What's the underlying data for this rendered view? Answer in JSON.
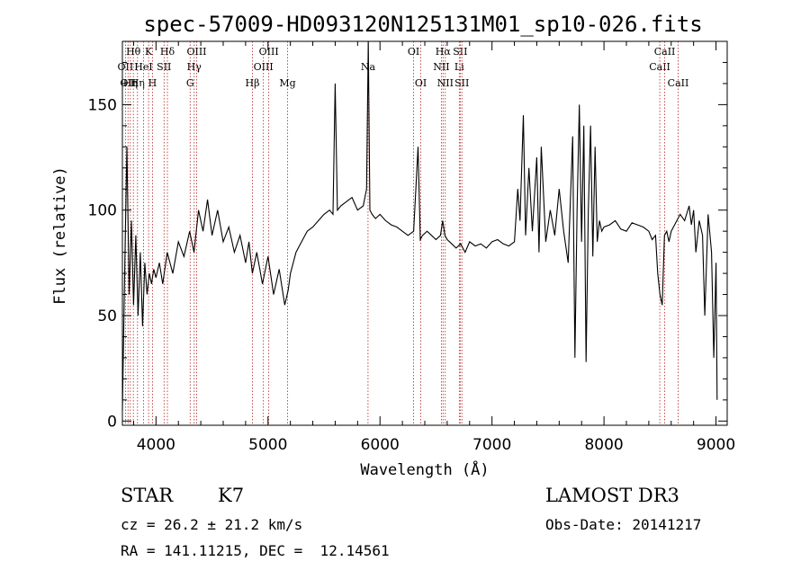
{
  "chart_data": {
    "type": "line",
    "title": "spec-57009-HD093120N125131M01_sp10-026.fits",
    "xlabel": "Wavelength (Å)",
    "ylabel": "Flux (relative)",
    "xlim": [
      3700,
      9100
    ],
    "ylim": [
      -2,
      180
    ],
    "xticks": [
      4000,
      5000,
      6000,
      7000,
      8000,
      9000
    ],
    "yticks": [
      0,
      50,
      100,
      150
    ],
    "grid": false,
    "line_color": "#000000",
    "marker_color": "#b22222",
    "series": [
      {
        "x": [
          3700,
          3720,
          3740,
          3760,
          3780,
          3800,
          3820,
          3840,
          3860,
          3880,
          3900,
          3920,
          3940,
          3960,
          3980,
          4000,
          4030,
          4060,
          4100,
          4150,
          4200,
          4250,
          4300,
          4340,
          4380,
          4420,
          4460,
          4500,
          4550,
          4600,
          4650,
          4700,
          4750,
          4800,
          4830,
          4860,
          4900,
          4950,
          5000,
          5050,
          5100,
          5150,
          5180,
          5200,
          5250,
          5300,
          5350,
          5400,
          5450,
          5500,
          5550,
          5580,
          5600,
          5620,
          5650,
          5700,
          5750,
          5800,
          5850,
          5880,
          5895,
          5910,
          5930,
          5960,
          6000,
          6050,
          6100,
          6150,
          6200,
          6250,
          6300,
          6340,
          6360,
          6380,
          6420,
          6460,
          6500,
          6540,
          6560,
          6580,
          6600,
          6640,
          6680,
          6720,
          6760,
          6800,
          6850,
          6900,
          6950,
          7000,
          7050,
          7100,
          7150,
          7200,
          7230,
          7250,
          7280,
          7300,
          7330,
          7360,
          7400,
          7420,
          7440,
          7480,
          7520,
          7560,
          7600,
          7640,
          7680,
          7720,
          7740,
          7760,
          7780,
          7800,
          7820,
          7840,
          7860,
          7880,
          7900,
          7920,
          7940,
          7960,
          7980,
          8000,
          8050,
          8100,
          8150,
          8200,
          8250,
          8300,
          8350,
          8400,
          8430,
          8460,
          8480,
          8500,
          8520,
          8540,
          8560,
          8580,
          8600,
          8640,
          8680,
          8720,
          8760,
          8780,
          8800,
          8820,
          8850,
          8880,
          8900,
          8930,
          8960,
          8980,
          9000,
          9010
        ],
        "y": [
          5,
          70,
          130,
          60,
          95,
          55,
          88,
          50,
          80,
          45,
          75,
          60,
          70,
          65,
          72,
          68,
          75,
          65,
          80,
          70,
          85,
          78,
          90,
          80,
          100,
          90,
          105,
          88,
          100,
          85,
          92,
          80,
          88,
          75,
          85,
          70,
          80,
          65,
          78,
          60,
          72,
          55,
          62,
          70,
          80,
          85,
          90,
          92,
          95,
          98,
          100,
          98,
          160,
          100,
          102,
          104,
          106,
          100,
          102,
          110,
          180,
          100,
          98,
          96,
          98,
          95,
          93,
          92,
          90,
          88,
          90,
          130,
          86,
          88,
          90,
          88,
          86,
          88,
          95,
          88,
          86,
          84,
          82,
          84,
          80,
          85,
          83,
          84,
          82,
          85,
          86,
          84,
          83,
          85,
          110,
          95,
          145,
          88,
          120,
          90,
          125,
          80,
          130,
          85,
          100,
          88,
          110,
          90,
          75,
          135,
          30,
          100,
          150,
          85,
          140,
          28,
          100,
          140,
          78,
          130,
          85,
          95,
          90,
          92,
          93,
          95,
          91,
          90,
          94,
          93,
          92,
          90,
          86,
          88,
          70,
          60,
          55,
          88,
          90,
          85,
          90,
          94,
          98,
          95,
          102,
          93,
          100,
          80,
          95,
          88,
          50,
          98,
          80,
          30,
          75,
          10
        ]
      }
    ],
    "line_markers": [
      {
        "x": 3727,
        "label": "OII",
        "row": 2
      },
      {
        "x": 3750,
        "label": "OII",
        "row": 3
      },
      {
        "x": 3771,
        "label": "Hη",
        "row": 3
      },
      {
        "x": 3798,
        "label": "Hθ",
        "row": 1
      },
      {
        "x": 3835,
        "label": "Hη",
        "row": 3
      },
      {
        "x": 3889,
        "label": "HeI",
        "row": 2
      },
      {
        "x": 3934,
        "label": "K",
        "row": 1
      },
      {
        "x": 3969,
        "label": "H",
        "row": 3
      },
      {
        "x": 4072,
        "label": "SII",
        "row": 2
      },
      {
        "x": 4102,
        "label": "Hδ",
        "row": 1
      },
      {
        "x": 4305,
        "label": "G",
        "row": 3
      },
      {
        "x": 4341,
        "label": "Hγ",
        "row": 2
      },
      {
        "x": 4363,
        "label": "OIII",
        "row": 1
      },
      {
        "x": 4861,
        "label": "Hβ",
        "row": 3
      },
      {
        "x": 4959,
        "label": "OIII",
        "row": 2
      },
      {
        "x": 5007,
        "label": "OIII",
        "row": 1
      },
      {
        "x": 5175,
        "label": "Mg",
        "row": 3
      },
      {
        "x": 5893,
        "label": "Na",
        "row": 2
      },
      {
        "x": 6300,
        "label": "OI",
        "row": 1
      },
      {
        "x": 6364,
        "label": "OI",
        "row": 3
      },
      {
        "x": 6548,
        "label": "NII",
        "row": 2
      },
      {
        "x": 6563,
        "label": "Hα",
        "row": 1
      },
      {
        "x": 6583,
        "label": "NII",
        "row": 3
      },
      {
        "x": 6708,
        "label": "Li",
        "row": 2
      },
      {
        "x": 6716,
        "label": "SII",
        "row": 1
      },
      {
        "x": 6731,
        "label": "SII",
        "row": 3
      },
      {
        "x": 8498,
        "label": "CaII",
        "row": 2
      },
      {
        "x": 8542,
        "label": "CaII",
        "row": 1
      },
      {
        "x": 8662,
        "label": "CaII",
        "row": 3
      }
    ]
  },
  "info": {
    "object_class": "STAR",
    "subclass": "K7",
    "survey": "LAMOST DR3",
    "redshift_text": "cz = 26.2 ± 21.2 km/s",
    "obs_date_text": "Obs-Date: 20141217",
    "coords_text": "RA = 141.11215, DEC =  12.14561"
  }
}
